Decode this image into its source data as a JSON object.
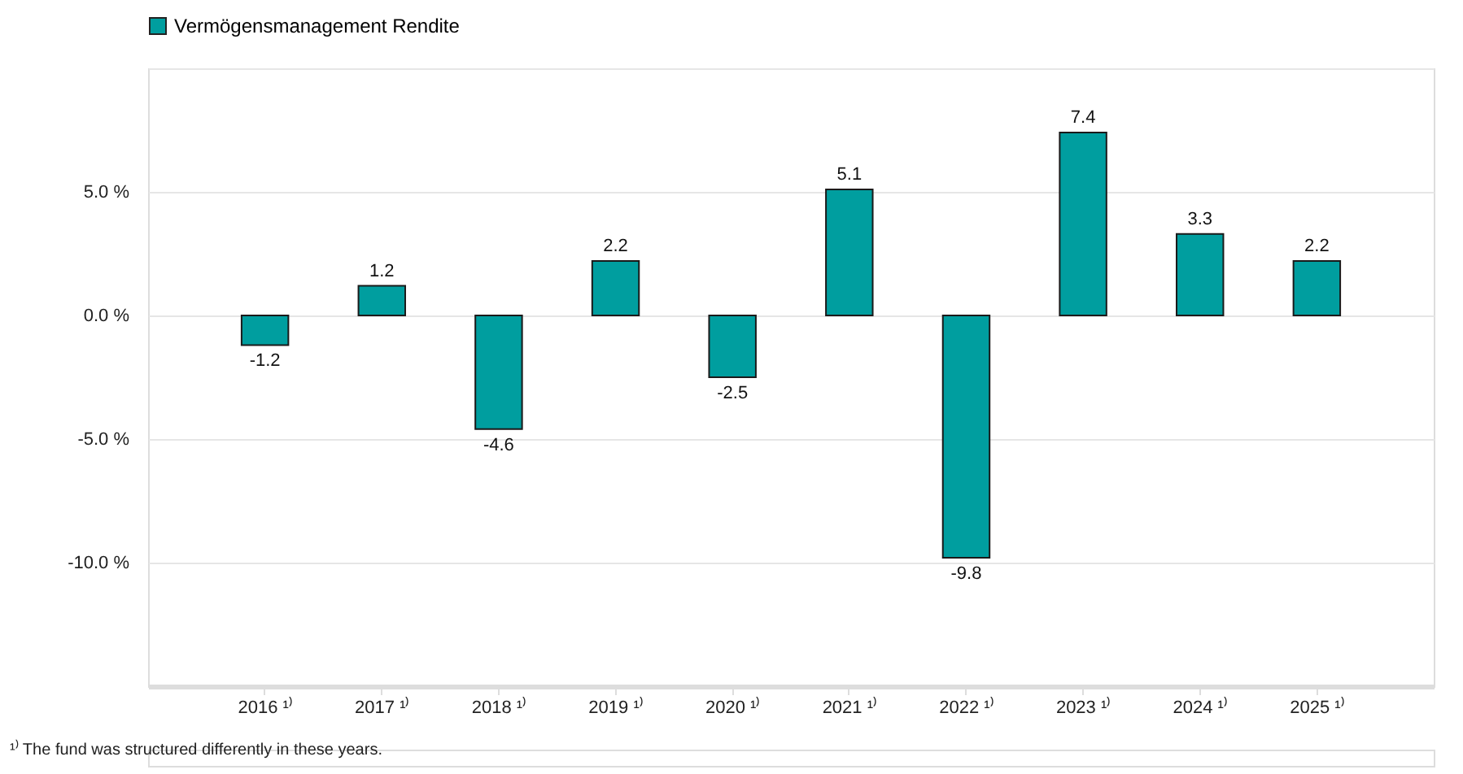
{
  "chart_data": {
    "type": "bar",
    "categories": [
      "2016 ¹⁾",
      "2017 ¹⁾",
      "2018 ¹⁾",
      "2019 ¹⁾",
      "2020 ¹⁾",
      "2021 ¹⁾",
      "2022 ¹⁾",
      "2023 ¹⁾",
      "2024 ¹⁾",
      "2025 ¹⁾"
    ],
    "series": [
      {
        "name": "Vermögensmanagement Rendite",
        "color": "#009e9f",
        "values": [
          -1.2,
          1.2,
          -4.6,
          2.2,
          -2.5,
          5.1,
          -9.8,
          7.4,
          3.3,
          2.2
        ]
      }
    ],
    "ylim": [
      -15,
      10
    ],
    "yticks": [
      {
        "value": -10,
        "label": "-10.0 %"
      },
      {
        "value": -5,
        "label": "-5.0 %"
      },
      {
        "value": 0,
        "label": "0.0 %"
      },
      {
        "value": 5,
        "label": "5.0 %"
      },
      {
        "value": 10,
        "label": null
      }
    ],
    "grid": "y",
    "legend": "top",
    "data_labels": true,
    "annotations": [
      "¹⁾ The fund was structured differently in these years."
    ]
  }
}
